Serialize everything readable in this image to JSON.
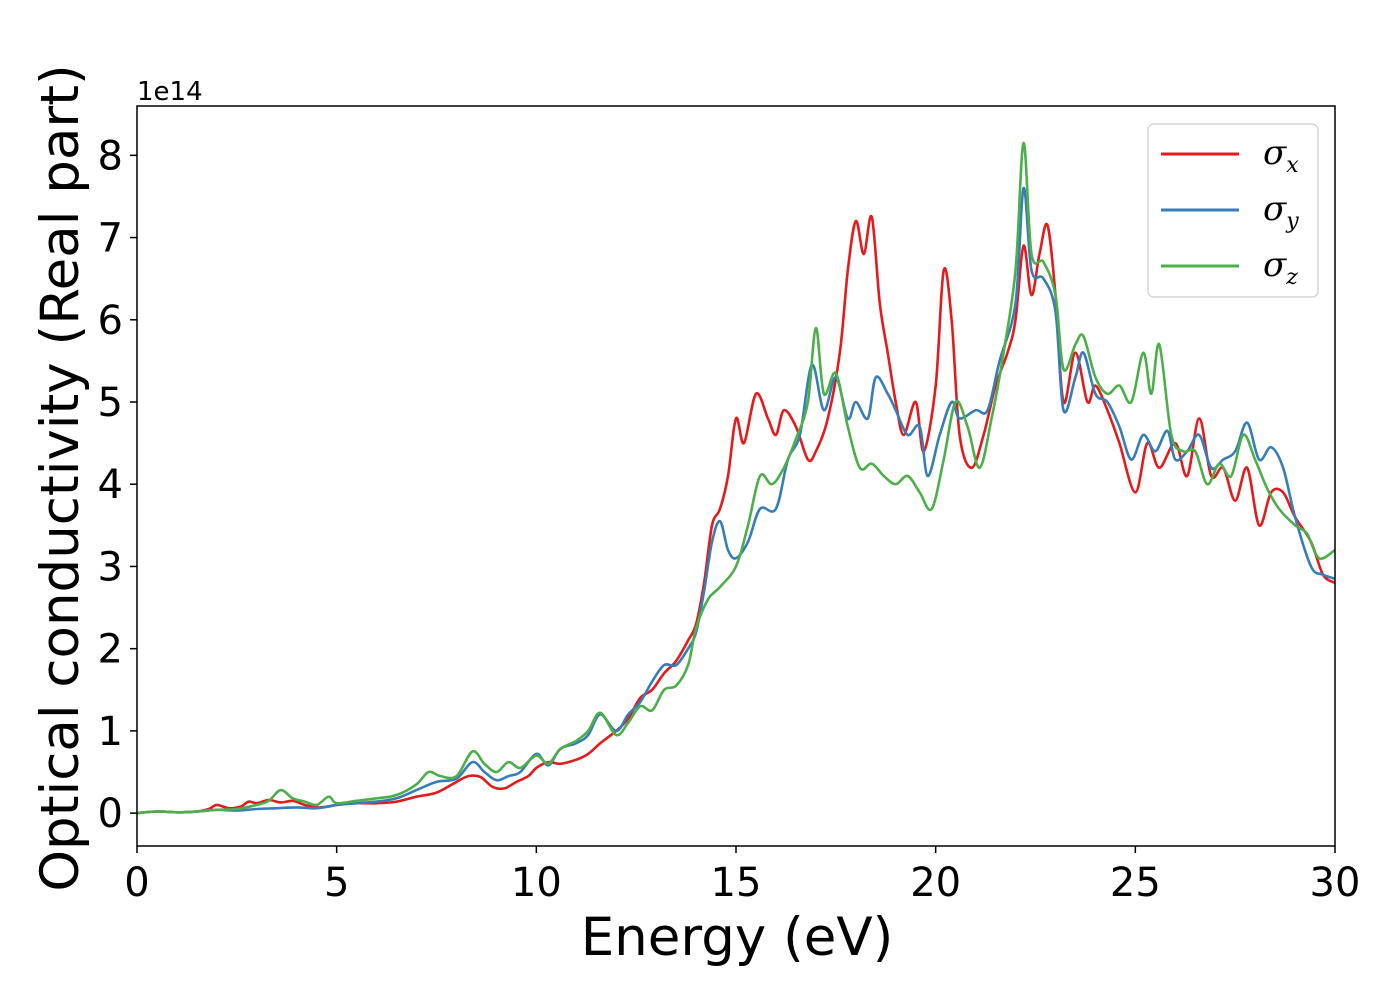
{
  "chart_data": {
    "type": "line",
    "xlabel": "Energy (eV)",
    "ylabel": "Optical conductivity (Real part)",
    "y_offset_label": "1e14",
    "y_multiplier": 100000000000000.0,
    "xlim": [
      0,
      30
    ],
    "ylim": [
      -0.4,
      8.6
    ],
    "x_ticks": [
      0,
      5,
      10,
      15,
      20,
      25,
      30
    ],
    "x_tick_labels": [
      "0",
      "5",
      "10",
      "15",
      "20",
      "25",
      "30"
    ],
    "y_ticks": [
      0,
      1,
      2,
      3,
      4,
      5,
      6,
      7,
      8
    ],
    "y_tick_labels": [
      "0",
      "1",
      "2",
      "3",
      "4",
      "5",
      "6",
      "7",
      "8"
    ],
    "grid": false,
    "legend_position": "top-right",
    "series": [
      {
        "name": "σx",
        "symbol": "σ",
        "subscript": "x",
        "color": "#e41a1c",
        "points": [
          [
            0,
            0
          ],
          [
            0.5,
            0.02
          ],
          [
            1,
            0.01
          ],
          [
            1.5,
            0.02
          ],
          [
            1.8,
            0.05
          ],
          [
            2,
            0.1
          ],
          [
            2.3,
            0.06
          ],
          [
            2.6,
            0.08
          ],
          [
            2.8,
            0.14
          ],
          [
            3,
            0.12
          ],
          [
            3.3,
            0.16
          ],
          [
            3.6,
            0.13
          ],
          [
            3.9,
            0.15
          ],
          [
            4.2,
            0.1
          ],
          [
            4.5,
            0.07
          ],
          [
            4.8,
            0.08
          ],
          [
            5,
            0.1
          ],
          [
            5.5,
            0.12
          ],
          [
            6,
            0.12
          ],
          [
            6.5,
            0.14
          ],
          [
            7,
            0.2
          ],
          [
            7.5,
            0.25
          ],
          [
            8,
            0.38
          ],
          [
            8.3,
            0.45
          ],
          [
            8.6,
            0.44
          ],
          [
            8.9,
            0.32
          ],
          [
            9.2,
            0.3
          ],
          [
            9.5,
            0.38
          ],
          [
            9.8,
            0.45
          ],
          [
            10,
            0.55
          ],
          [
            10.3,
            0.62
          ],
          [
            10.6,
            0.6
          ],
          [
            11,
            0.65
          ],
          [
            11.3,
            0.72
          ],
          [
            11.6,
            0.85
          ],
          [
            12,
            1.0
          ],
          [
            12.3,
            1.15
          ],
          [
            12.6,
            1.4
          ],
          [
            12.9,
            1.5
          ],
          [
            13.2,
            1.7
          ],
          [
            13.5,
            1.85
          ],
          [
            13.8,
            2.1
          ],
          [
            14,
            2.3
          ],
          [
            14.2,
            2.8
          ],
          [
            14.4,
            3.5
          ],
          [
            14.6,
            3.7
          ],
          [
            14.8,
            4.1
          ],
          [
            15,
            4.8
          ],
          [
            15.2,
            4.5
          ],
          [
            15.5,
            5.1
          ],
          [
            15.8,
            4.8
          ],
          [
            16,
            4.6
          ],
          [
            16.2,
            4.9
          ],
          [
            16.5,
            4.7
          ],
          [
            16.8,
            4.3
          ],
          [
            17,
            4.4
          ],
          [
            17.3,
            4.8
          ],
          [
            17.6,
            5.6
          ],
          [
            17.8,
            6.6
          ],
          [
            18,
            7.2
          ],
          [
            18.2,
            6.8
          ],
          [
            18.4,
            7.25
          ],
          [
            18.6,
            6.2
          ],
          [
            18.8,
            5.6
          ],
          [
            19,
            5.0
          ],
          [
            19.2,
            4.6
          ],
          [
            19.5,
            5.0
          ],
          [
            19.7,
            4.4
          ],
          [
            20,
            5.2
          ],
          [
            20.2,
            6.6
          ],
          [
            20.4,
            6.0
          ],
          [
            20.6,
            4.6
          ],
          [
            20.9,
            4.2
          ],
          [
            21.2,
            4.6
          ],
          [
            21.5,
            5.2
          ],
          [
            21.8,
            5.6
          ],
          [
            22,
            6.0
          ],
          [
            22.2,
            6.9
          ],
          [
            22.4,
            6.3
          ],
          [
            22.6,
            6.8
          ],
          [
            22.8,
            7.15
          ],
          [
            23,
            6.3
          ],
          [
            23.2,
            5.0
          ],
          [
            23.5,
            5.6
          ],
          [
            23.8,
            5.0
          ],
          [
            24,
            5.2
          ],
          [
            24.3,
            4.9
          ],
          [
            24.6,
            4.5
          ],
          [
            25,
            3.9
          ],
          [
            25.3,
            4.5
          ],
          [
            25.6,
            4.2
          ],
          [
            26,
            4.5
          ],
          [
            26.3,
            4.1
          ],
          [
            26.6,
            4.8
          ],
          [
            26.9,
            4.1
          ],
          [
            27.2,
            4.2
          ],
          [
            27.5,
            3.8
          ],
          [
            27.8,
            4.2
          ],
          [
            28.1,
            3.5
          ],
          [
            28.4,
            3.9
          ],
          [
            28.7,
            3.9
          ],
          [
            29,
            3.6
          ],
          [
            29.4,
            3.3
          ],
          [
            29.7,
            2.9
          ],
          [
            30,
            2.8
          ]
        ]
      },
      {
        "name": "σy",
        "symbol": "σ",
        "subscript": "y",
        "color": "#377eb8",
        "points": [
          [
            0,
            0
          ],
          [
            0.5,
            0.02
          ],
          [
            1,
            0.01
          ],
          [
            1.5,
            0.02
          ],
          [
            2,
            0.04
          ],
          [
            2.5,
            0.03
          ],
          [
            3,
            0.05
          ],
          [
            3.5,
            0.06
          ],
          [
            4,
            0.07
          ],
          [
            4.5,
            0.06
          ],
          [
            5,
            0.1
          ],
          [
            5.5,
            0.12
          ],
          [
            6,
            0.14
          ],
          [
            6.5,
            0.18
          ],
          [
            7,
            0.28
          ],
          [
            7.5,
            0.38
          ],
          [
            8,
            0.42
          ],
          [
            8.4,
            0.62
          ],
          [
            8.7,
            0.5
          ],
          [
            9,
            0.4
          ],
          [
            9.3,
            0.45
          ],
          [
            9.6,
            0.5
          ],
          [
            10,
            0.72
          ],
          [
            10.3,
            0.58
          ],
          [
            10.6,
            0.78
          ],
          [
            11,
            0.85
          ],
          [
            11.3,
            0.95
          ],
          [
            11.6,
            1.2
          ],
          [
            12,
            1.0
          ],
          [
            12.3,
            1.2
          ],
          [
            12.6,
            1.35
          ],
          [
            12.9,
            1.6
          ],
          [
            13.2,
            1.8
          ],
          [
            13.5,
            1.8
          ],
          [
            13.8,
            2.0
          ],
          [
            14,
            2.2
          ],
          [
            14.2,
            2.7
          ],
          [
            14.4,
            3.3
          ],
          [
            14.6,
            3.55
          ],
          [
            14.8,
            3.2
          ],
          [
            15,
            3.1
          ],
          [
            15.3,
            3.3
          ],
          [
            15.6,
            3.7
          ],
          [
            16,
            3.7
          ],
          [
            16.3,
            4.3
          ],
          [
            16.6,
            4.6
          ],
          [
            16.9,
            5.45
          ],
          [
            17.2,
            4.9
          ],
          [
            17.5,
            5.3
          ],
          [
            17.8,
            4.8
          ],
          [
            18,
            5.0
          ],
          [
            18.3,
            4.8
          ],
          [
            18.5,
            5.3
          ],
          [
            18.8,
            5.1
          ],
          [
            19,
            4.9
          ],
          [
            19.3,
            4.6
          ],
          [
            19.6,
            4.7
          ],
          [
            19.8,
            4.1
          ],
          [
            20.1,
            4.6
          ],
          [
            20.4,
            5.0
          ],
          [
            20.6,
            4.8
          ],
          [
            21,
            4.9
          ],
          [
            21.3,
            4.9
          ],
          [
            21.6,
            5.5
          ],
          [
            22,
            6.2
          ],
          [
            22.2,
            7.6
          ],
          [
            22.4,
            6.6
          ],
          [
            22.7,
            6.5
          ],
          [
            23,
            6.1
          ],
          [
            23.2,
            4.9
          ],
          [
            23.5,
            5.3
          ],
          [
            23.7,
            5.6
          ],
          [
            24,
            5.1
          ],
          [
            24.3,
            5.0
          ],
          [
            24.6,
            4.7
          ],
          [
            24.9,
            4.3
          ],
          [
            25.2,
            4.6
          ],
          [
            25.5,
            4.4
          ],
          [
            25.8,
            4.65
          ],
          [
            26,
            4.3
          ],
          [
            26.3,
            4.4
          ],
          [
            26.6,
            4.6
          ],
          [
            26.9,
            4.2
          ],
          [
            27.2,
            4.3
          ],
          [
            27.5,
            4.4
          ],
          [
            27.8,
            4.75
          ],
          [
            28.1,
            4.3
          ],
          [
            28.4,
            4.45
          ],
          [
            28.7,
            4.2
          ],
          [
            29,
            3.6
          ],
          [
            29.4,
            3.0
          ],
          [
            29.7,
            2.9
          ],
          [
            30,
            2.85
          ]
        ]
      },
      {
        "name": "σz",
        "symbol": "σ",
        "subscript": "z",
        "color": "#4daf4a",
        "points": [
          [
            0,
            0
          ],
          [
            0.5,
            0.02
          ],
          [
            1,
            0.01
          ],
          [
            1.5,
            0.02
          ],
          [
            2,
            0.04
          ],
          [
            2.5,
            0.05
          ],
          [
            3,
            0.1
          ],
          [
            3.3,
            0.15
          ],
          [
            3.6,
            0.28
          ],
          [
            3.9,
            0.18
          ],
          [
            4.2,
            0.14
          ],
          [
            4.5,
            0.1
          ],
          [
            4.8,
            0.2
          ],
          [
            5,
            0.12
          ],
          [
            5.5,
            0.15
          ],
          [
            6,
            0.18
          ],
          [
            6.5,
            0.22
          ],
          [
            7,
            0.35
          ],
          [
            7.3,
            0.5
          ],
          [
            7.6,
            0.45
          ],
          [
            8,
            0.45
          ],
          [
            8.4,
            0.75
          ],
          [
            8.7,
            0.6
          ],
          [
            9,
            0.5
          ],
          [
            9.3,
            0.62
          ],
          [
            9.6,
            0.55
          ],
          [
            10,
            0.7
          ],
          [
            10.3,
            0.6
          ],
          [
            10.6,
            0.78
          ],
          [
            11,
            0.88
          ],
          [
            11.3,
            1.0
          ],
          [
            11.6,
            1.22
          ],
          [
            12,
            0.95
          ],
          [
            12.3,
            1.1
          ],
          [
            12.6,
            1.3
          ],
          [
            12.9,
            1.25
          ],
          [
            13.2,
            1.5
          ],
          [
            13.5,
            1.55
          ],
          [
            13.8,
            1.8
          ],
          [
            14,
            2.25
          ],
          [
            14.3,
            2.6
          ],
          [
            14.6,
            2.75
          ],
          [
            15,
            3.0
          ],
          [
            15.3,
            3.5
          ],
          [
            15.6,
            4.1
          ],
          [
            15.9,
            4.0
          ],
          [
            16.2,
            4.2
          ],
          [
            16.5,
            4.55
          ],
          [
            16.8,
            5.0
          ],
          [
            17,
            5.9
          ],
          [
            17.2,
            5.1
          ],
          [
            17.5,
            5.35
          ],
          [
            17.8,
            4.7
          ],
          [
            18.1,
            4.2
          ],
          [
            18.4,
            4.25
          ],
          [
            18.7,
            4.1
          ],
          [
            19,
            4.0
          ],
          [
            19.3,
            4.1
          ],
          [
            19.6,
            3.9
          ],
          [
            19.9,
            3.7
          ],
          [
            20.2,
            4.3
          ],
          [
            20.5,
            5.0
          ],
          [
            20.8,
            4.7
          ],
          [
            21.1,
            4.2
          ],
          [
            21.4,
            4.8
          ],
          [
            21.7,
            5.6
          ],
          [
            22,
            6.6
          ],
          [
            22.2,
            8.15
          ],
          [
            22.4,
            6.8
          ],
          [
            22.7,
            6.7
          ],
          [
            23,
            6.3
          ],
          [
            23.2,
            5.4
          ],
          [
            23.5,
            5.7
          ],
          [
            23.7,
            5.8
          ],
          [
            24,
            5.3
          ],
          [
            24.3,
            5.1
          ],
          [
            24.6,
            5.2
          ],
          [
            24.9,
            5.0
          ],
          [
            25.2,
            5.6
          ],
          [
            25.4,
            5.1
          ],
          [
            25.6,
            5.7
          ],
          [
            25.9,
            4.6
          ],
          [
            26.2,
            4.4
          ],
          [
            26.5,
            4.4
          ],
          [
            26.8,
            4.0
          ],
          [
            27.1,
            4.25
          ],
          [
            27.4,
            4.1
          ],
          [
            27.7,
            4.6
          ],
          [
            28,
            4.3
          ],
          [
            28.3,
            3.95
          ],
          [
            28.6,
            3.7
          ],
          [
            29,
            3.5
          ],
          [
            29.3,
            3.4
          ],
          [
            29.6,
            3.1
          ],
          [
            30,
            3.2
          ]
        ]
      }
    ]
  }
}
